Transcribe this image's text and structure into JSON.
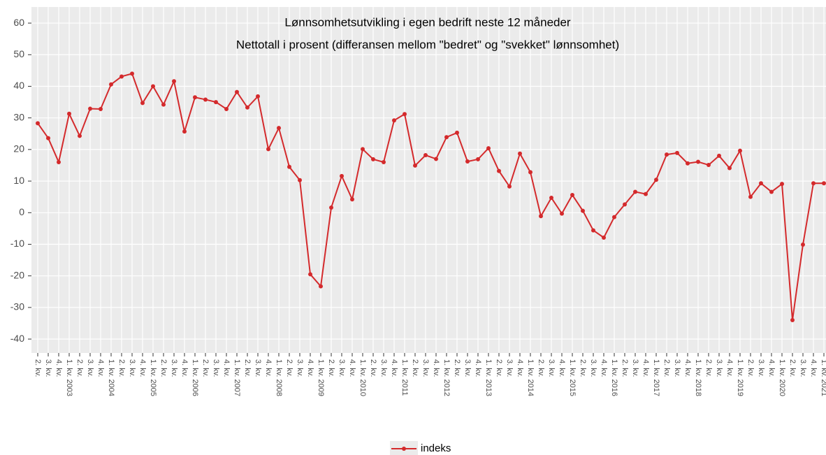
{
  "chart_data": {
    "type": "line",
    "title": "Lønnsomhetsutvikling i egen bedrift neste 12 måneder",
    "subtitle": "Nettotall i prosent (differansen mellom \"bedret\" og \"svekket\" lønnsomhet)",
    "categories": [
      "2. kv.",
      "3. kv.",
      "4. kv.",
      "1. kv. 2003",
      "2. kv.",
      "3. kv.",
      "4. kv.",
      "1. kv. 2004",
      "2. kv.",
      "3. kv.",
      "4. kv.",
      "1. kv. 2005",
      "2. kv.",
      "3. kv.",
      "4. kv.",
      "1. kv. 2006",
      "2. kv.",
      "3. kv.",
      "4. kv.",
      "1. kv. 2007",
      "2. kv.",
      "3. kv.",
      "4. kv.",
      "1. kv. 2008",
      "2. kv.",
      "3. kv.",
      "4. kv.",
      "1. kv. 2009",
      "2. kv.",
      "3. kv.",
      "4. kv.",
      "1. kv. 2010",
      "2. kv.",
      "3. kv.",
      "4. kv.",
      "1. kv. 2011",
      "2. kv.",
      "3. kv.",
      "4. kv.",
      "1. kv. 2012",
      "2. kv.",
      "3. kv.",
      "4. kv.",
      "1. kv. 2013",
      "2. kv.",
      "3. kv.",
      "4. kv.",
      "1. kv. 2014",
      "2. kv.",
      "3. kv.",
      "4. kv.",
      "1. kv. 2015",
      "2. kv.",
      "3. kv.",
      "4. kv.",
      "1. kv. 2016",
      "2. kv.",
      "3. kv.",
      "4. kv.",
      "1. kv. 2017",
      "2. kv.",
      "3. kv.",
      "4. kv.",
      "1. kv. 2018",
      "2. kv.",
      "3. kv.",
      "4. kv.",
      "1. kv. 2019",
      "2. kv.",
      "3. kv.",
      "4. kv.",
      "1. kv. 2020",
      "2. kv.",
      "3. kv.",
      "4. kv.",
      "1. kv. 2021"
    ],
    "series": [
      {
        "name": "indeks",
        "color": "#d42a2c",
        "values": [
          28.3,
          23.6,
          16,
          31.3,
          24.3,
          32.9,
          32.8,
          40.6,
          43.1,
          44,
          34.7,
          40,
          34.2,
          41.6,
          25.7,
          36.5,
          35.8,
          35,
          32.8,
          38.2,
          33.3,
          36.8,
          20.1,
          26.8,
          14.5,
          10.3,
          -19.5,
          -23.3,
          1.6,
          11.6,
          4.2,
          20.1,
          16.9,
          16,
          29.2,
          31.2,
          14.9,
          18.2,
          17,
          23.9,
          25.3,
          16.2,
          16.9,
          20.4,
          13.2,
          8.3,
          18.7,
          12.8,
          -1.1,
          4.7,
          -0.3,
          5.6,
          0.6,
          -5.6,
          -7.9,
          -1.4,
          2.6,
          6.6,
          5.9,
          10.4,
          18.4,
          18.9,
          15.6,
          16.1,
          15.1,
          18,
          14.1,
          19.6,
          5,
          9.3,
          6.6,
          9.1,
          -34,
          -10.1,
          9.3,
          9.3
        ]
      }
    ],
    "ylim": [
      -44.4,
      65.1
    ],
    "yticks": [
      -40,
      -30,
      -20,
      -10,
      0,
      10,
      20,
      30,
      40,
      50,
      60
    ],
    "grid": true,
    "legend": "bottom"
  }
}
